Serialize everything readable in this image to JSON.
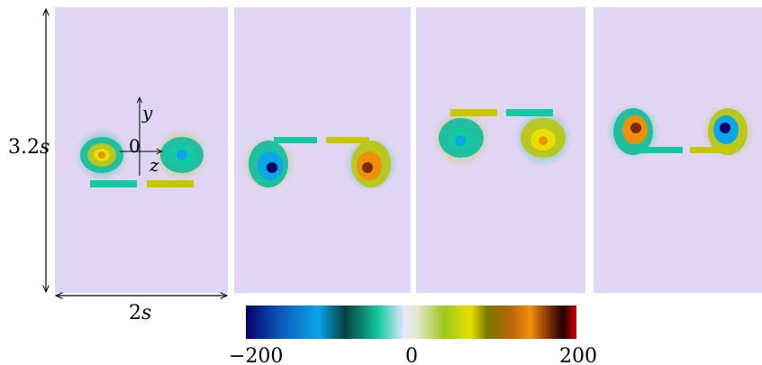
{
  "figure": {
    "height_label_value": "3.2",
    "height_label_unit": "s",
    "width_label_value": "2",
    "width_label_unit": "s",
    "axis_y": "y",
    "axis_z": "z",
    "origin": "0"
  },
  "colorbar": {
    "min_label": "−200",
    "mid_label": "0",
    "max_label": "200",
    "stops": [
      "#05006a",
      "#0a55b8",
      "#0aa6e8",
      "#053f3f",
      "#12c9a0",
      "#e8e8ff",
      "#e2e8c8",
      "#9ec81a",
      "#e8e000",
      "#7a7a00",
      "#b8640a",
      "#f08f0a",
      "#7a2a05",
      "#200000",
      "#d80000"
    ]
  },
  "panels": [
    {
      "id": 1,
      "description_colors": [
        "#1fbfa0",
        "#c8c800",
        "#2a7ad8"
      ]
    },
    {
      "id": 2,
      "description_colors": [
        "#1fbfa0",
        "#c8c800",
        "#2a7ad8"
      ]
    },
    {
      "id": 3,
      "description_colors": [
        "#1fbfa0",
        "#c8c800",
        "#2a7ad8"
      ]
    },
    {
      "id": 4,
      "description_colors": [
        "#1fbfa0",
        "#c8c800",
        "#2a7ad8"
      ]
    }
  ]
}
